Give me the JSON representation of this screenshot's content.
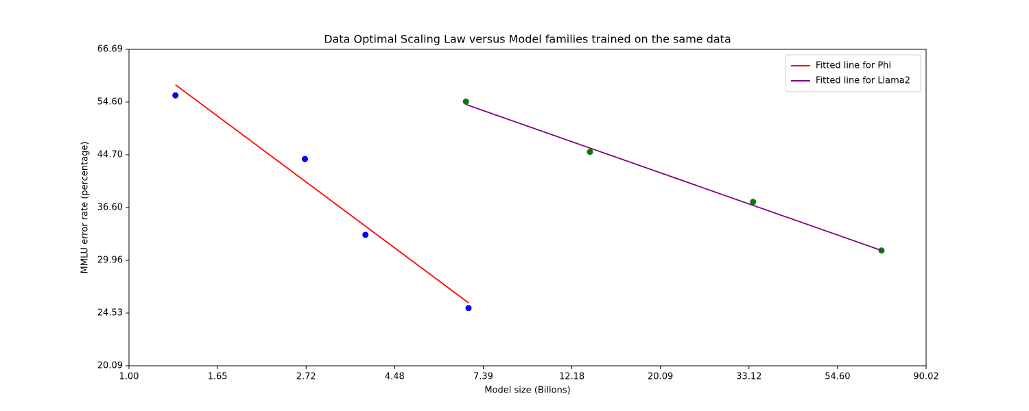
{
  "chart_data": {
    "type": "scatter",
    "title": "Data Optimal Scaling Law versus Model families trained on the same data",
    "x_label": "Model size (Billons)",
    "y_label": "MMLU error rate (percentage)",
    "xscale": "log",
    "yscale": "log",
    "grid": false,
    "legend": "upper right",
    "xlim": [
      1,
      90.0171
    ],
    "ylim": [
      20.0855,
      66.6863
    ],
    "xticks": [
      {
        "value": 1,
        "label": "1.00"
      },
      {
        "value": 1.6487,
        "label": "1.65"
      },
      {
        "value": 2.7183,
        "label": "2.72"
      },
      {
        "value": 4.4817,
        "label": "4.48"
      },
      {
        "value": 7.3891,
        "label": "7.39"
      },
      {
        "value": 12.1825,
        "label": "12.18"
      },
      {
        "value": 20.0855,
        "label": "20.09"
      },
      {
        "value": 33.1155,
        "label": "33.12"
      },
      {
        "value": 54.5982,
        "label": "54.60"
      },
      {
        "value": 90.0171,
        "label": "90.02"
      }
    ],
    "yticks": [
      {
        "value": 20.0855,
        "label": "20.09"
      },
      {
        "value": 24.5325,
        "label": "24.53"
      },
      {
        "value": 29.9641,
        "label": "29.96"
      },
      {
        "value": 36.5982,
        "label": "36.60"
      },
      {
        "value": 44.7012,
        "label": "44.70"
      },
      {
        "value": 54.5982,
        "label": "54.60"
      },
      {
        "value": 66.6863,
        "label": "66.69"
      }
    ],
    "series": [
      {
        "type": "scatter",
        "color": "#0000ff",
        "x": [
          1.3,
          2.7,
          3.8,
          6.8
        ],
        "values": [
          56.0,
          44.0,
          33.0,
          25.0
        ]
      },
      {
        "type": "scatter",
        "color": "#008000",
        "x": [
          6.7,
          13.5,
          33.9,
          70.0
        ],
        "values": [
          54.7,
          45.2,
          37.4,
          31.1
        ]
      },
      {
        "type": "line",
        "name": "Fitted line for Phi",
        "color": "#ff0000",
        "x": [
          1.3,
          6.8
        ],
        "values": [
          58.3,
          25.5
        ]
      },
      {
        "type": "line",
        "name": "Fitted line for Llama2",
        "color": "#800080",
        "x": [
          6.7,
          70.0
        ],
        "values": [
          54.1,
          31.1
        ]
      }
    ]
  }
}
